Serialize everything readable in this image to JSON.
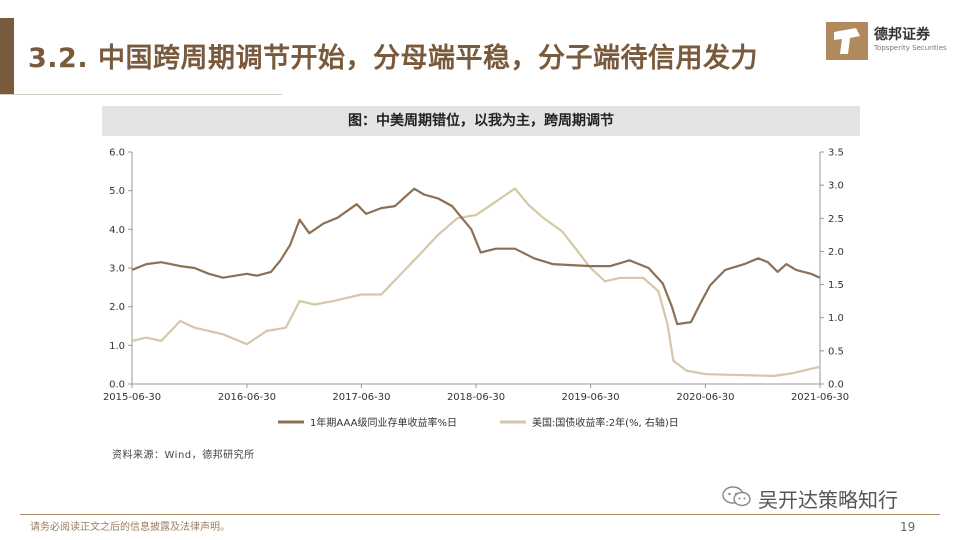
{
  "slide": {
    "title": "3.2. 中国跨周期调节开始，分母端平稳，分子端待信用发力",
    "chart_title": "图：中美周期错位，以我为主，跨周期调节",
    "source": "资料来源：Wind，德邦研究所",
    "disclaimer": "请务必阅读正文之后的信息披露及法律声明。",
    "page_number": "19",
    "watermark_text": "吴开达策略知行",
    "accent_color": "#7a5a3c"
  },
  "logo": {
    "name_cn": "德邦证券",
    "name_en": "Topsperity Securities"
  },
  "chart_data": {
    "type": "line",
    "x_ticks": [
      "2015-06-30",
      "2016-06-30",
      "2017-06-30",
      "2018-06-30",
      "2019-06-30",
      "2020-06-30",
      "2021-06-30"
    ],
    "x_range": [
      "2015-06-30",
      "2021-06-30"
    ],
    "y_left": {
      "lim": [
        0,
        6
      ],
      "ticks": [
        "0.0",
        "1.0",
        "2.0",
        "3.0",
        "4.0",
        "5.0",
        "6.0"
      ]
    },
    "y_right": {
      "lim": [
        0,
        3.5
      ],
      "ticks": [
        "0.0",
        "0.5",
        "1.0",
        "1.5",
        "2.0",
        "2.5",
        "3.0",
        "3.5"
      ]
    },
    "legend_position": "bottom",
    "series": [
      {
        "name": "1年期AAA级同业存单收益率%日",
        "axis": "left",
        "color": "#8c7055",
        "points": [
          [
            "2015-06-30",
            2.95
          ],
          [
            "2015-08-15",
            3.1
          ],
          [
            "2015-10-01",
            3.15
          ],
          [
            "2015-12-01",
            3.05
          ],
          [
            "2016-01-15",
            3.0
          ],
          [
            "2016-03-01",
            2.85
          ],
          [
            "2016-04-15",
            2.75
          ],
          [
            "2016-06-30",
            2.85
          ],
          [
            "2016-08-01",
            2.8
          ],
          [
            "2016-09-15",
            2.9
          ],
          [
            "2016-10-15",
            3.2
          ],
          [
            "2016-11-15",
            3.6
          ],
          [
            "2016-12-15",
            4.25
          ],
          [
            "2017-01-15",
            3.9
          ],
          [
            "2017-03-01",
            4.15
          ],
          [
            "2017-04-15",
            4.3
          ],
          [
            "2017-06-15",
            4.65
          ],
          [
            "2017-07-15",
            4.4
          ],
          [
            "2017-09-01",
            4.55
          ],
          [
            "2017-10-15",
            4.6
          ],
          [
            "2017-12-15",
            5.05
          ],
          [
            "2018-01-15",
            4.9
          ],
          [
            "2018-03-01",
            4.8
          ],
          [
            "2018-04-15",
            4.6
          ],
          [
            "2018-05-15",
            4.3
          ],
          [
            "2018-06-15",
            4.0
          ],
          [
            "2018-07-15",
            3.4
          ],
          [
            "2018-09-01",
            3.5
          ],
          [
            "2018-11-01",
            3.5
          ],
          [
            "2019-01-01",
            3.25
          ],
          [
            "2019-03-01",
            3.1
          ],
          [
            "2019-06-30",
            3.05
          ],
          [
            "2019-09-01",
            3.05
          ],
          [
            "2019-11-01",
            3.2
          ],
          [
            "2020-01-01",
            3.0
          ],
          [
            "2020-02-15",
            2.6
          ],
          [
            "2020-03-15",
            2.0
          ],
          [
            "2020-04-01",
            1.55
          ],
          [
            "2020-05-15",
            1.6
          ],
          [
            "2020-06-15",
            2.1
          ],
          [
            "2020-07-15",
            2.55
          ],
          [
            "2020-09-01",
            2.95
          ],
          [
            "2020-11-01",
            3.1
          ],
          [
            "2020-12-15",
            3.25
          ],
          [
            "2021-01-15",
            3.15
          ],
          [
            "2021-02-15",
            2.9
          ],
          [
            "2021-03-15",
            3.1
          ],
          [
            "2021-04-15",
            2.95
          ],
          [
            "2021-06-01",
            2.85
          ],
          [
            "2021-06-30",
            2.75
          ]
        ]
      },
      {
        "name": "美国:国债收益率:2年(%, 右轴)日",
        "axis": "right",
        "color": "#d5c7a8",
        "points": [
          [
            "2015-06-30",
            0.65
          ],
          [
            "2015-08-15",
            0.7
          ],
          [
            "2015-10-01",
            0.65
          ],
          [
            "2015-12-01",
            0.95
          ],
          [
            "2016-01-15",
            0.85
          ],
          [
            "2016-03-01",
            0.8
          ],
          [
            "2016-04-15",
            0.75
          ],
          [
            "2016-06-30",
            0.6
          ],
          [
            "2016-09-01",
            0.8
          ],
          [
            "2016-11-01",
            0.85
          ],
          [
            "2016-12-15",
            1.25
          ],
          [
            "2017-02-01",
            1.2
          ],
          [
            "2017-04-01",
            1.25
          ],
          [
            "2017-06-30",
            1.35
          ],
          [
            "2017-09-01",
            1.35
          ],
          [
            "2017-11-01",
            1.65
          ],
          [
            "2018-01-01",
            1.95
          ],
          [
            "2018-03-01",
            2.25
          ],
          [
            "2018-05-01",
            2.5
          ],
          [
            "2018-06-30",
            2.55
          ],
          [
            "2018-09-01",
            2.75
          ],
          [
            "2018-11-01",
            2.95
          ],
          [
            "2018-12-15",
            2.7
          ],
          [
            "2019-02-01",
            2.5
          ],
          [
            "2019-04-01",
            2.3
          ],
          [
            "2019-06-30",
            1.75
          ],
          [
            "2019-08-15",
            1.55
          ],
          [
            "2019-10-01",
            1.6
          ],
          [
            "2019-12-15",
            1.6
          ],
          [
            "2020-02-01",
            1.4
          ],
          [
            "2020-03-01",
            0.9
          ],
          [
            "2020-03-20",
            0.35
          ],
          [
            "2020-05-01",
            0.2
          ],
          [
            "2020-06-30",
            0.15
          ],
          [
            "2020-09-01",
            0.14
          ],
          [
            "2020-12-01",
            0.13
          ],
          [
            "2021-02-01",
            0.12
          ],
          [
            "2021-04-01",
            0.16
          ],
          [
            "2021-06-20",
            0.25
          ],
          [
            "2021-06-30",
            0.25
          ]
        ]
      }
    ]
  }
}
